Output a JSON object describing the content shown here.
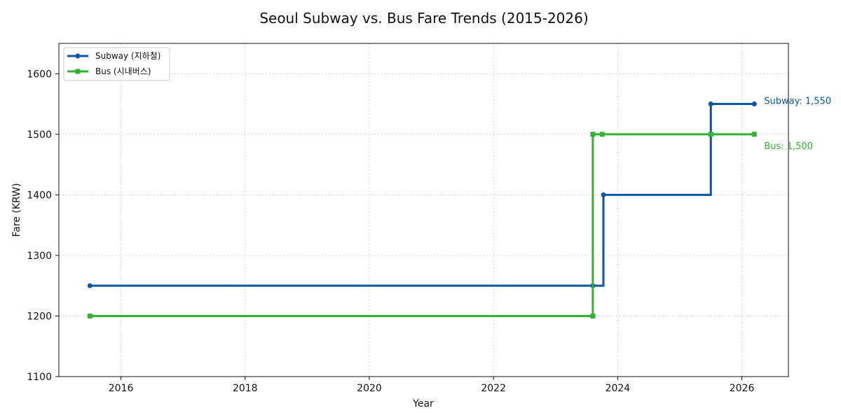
{
  "chart_data": {
    "type": "line",
    "step": "post",
    "title": "Seoul Subway vs. Bus Fare Trends (2015-2026)",
    "xlabel": "Year",
    "ylabel": "Fare (KRW)",
    "xlim": [
      2015.0,
      2026.75
    ],
    "ylim": [
      1100,
      1650
    ],
    "xticks": [
      2016,
      2018,
      2020,
      2022,
      2024,
      2026
    ],
    "yticks": [
      1100,
      1200,
      1300,
      1400,
      1500,
      1600
    ],
    "grid": true,
    "legend_position": "top-left",
    "series": [
      {
        "name": "Subway (지하철)",
        "color": "#0b55a3",
        "marker": "circle",
        "x": [
          2015.5,
          2023.6,
          2023.77,
          2025.5,
          2026.2
        ],
        "y": [
          1250,
          1250,
          1400,
          1550,
          1550
        ],
        "end_label": "Subway: 1,550"
      },
      {
        "name": "Bus (시내버스)",
        "color": "#33b133",
        "marker": "square",
        "x": [
          2015.5,
          2023.6,
          2023.6,
          2023.75,
          2025.5,
          2026.2
        ],
        "y": [
          1200,
          1200,
          1500,
          1500,
          1500,
          1500
        ],
        "end_label": "Bus: 1,500"
      }
    ]
  }
}
